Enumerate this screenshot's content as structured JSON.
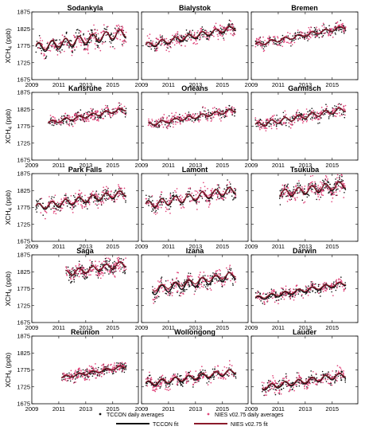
{
  "figure": {
    "legend": {
      "tccon_points": "TCCON daily averages",
      "nies_points": "NIES v02.75 daily averages",
      "tccon_fit": "TCCON fit",
      "nies_fit": "NIES v02.75 fit"
    },
    "colors": {
      "tccon": "#111111",
      "nies_point": "#e0457b",
      "nies_fit": "#8b1a2b",
      "frame": "#000000"
    }
  },
  "chart_data": [
    {
      "type": "scatter",
      "title": "Sodankyla",
      "ylabel": "XCH4 (ppb)",
      "xlim": [
        2009,
        2016.9
      ],
      "ylim": [
        1675,
        1875
      ],
      "xticks": [
        2009,
        2011,
        2013,
        2015
      ],
      "yticks": [
        1675,
        1725,
        1775,
        1825,
        1875
      ],
      "grid": false,
      "series": [
        {
          "name": "TCCON daily averages",
          "x_range": [
            2009.3,
            2016.0
          ]
        },
        {
          "name": "NIES v02.75 daily averages",
          "x_range": [
            2009.3,
            2016.0
          ]
        },
        {
          "name": "TCCON fit",
          "trend": [
            1768,
            1812
          ],
          "seasonal_amplitude": 14
        },
        {
          "name": "NIES v02.75 fit",
          "trend": [
            1772,
            1814
          ],
          "seasonal_amplitude": 12
        }
      ]
    },
    {
      "type": "scatter",
      "title": "Bialystok",
      "ylabel": "",
      "xlim": [
        2009,
        2016.9
      ],
      "ylim": [
        1675,
        1875
      ],
      "xticks": [
        2009,
        2011,
        2013,
        2015
      ],
      "yticks": [
        1675,
        1725,
        1775,
        1825,
        1875
      ],
      "grid": false,
      "series": [
        {
          "name": "TCCON daily averages",
          "x_range": [
            2009.3,
            2016.0
          ]
        },
        {
          "name": "NIES v02.75 daily averages",
          "x_range": [
            2009.3,
            2016.0
          ]
        },
        {
          "name": "TCCON fit",
          "trend": [
            1775,
            1828
          ],
          "seasonal_amplitude": 8
        },
        {
          "name": "NIES v02.75 fit",
          "trend": [
            1777,
            1830
          ],
          "seasonal_amplitude": 7
        }
      ]
    },
    {
      "type": "scatter",
      "title": "Bremen",
      "ylabel": "",
      "xlim": [
        2009,
        2016.9
      ],
      "ylim": [
        1675,
        1875
      ],
      "xticks": [
        2009,
        2011,
        2013,
        2015
      ],
      "yticks": [
        1675,
        1725,
        1775,
        1825,
        1875
      ],
      "grid": false,
      "series": [
        {
          "name": "TCCON daily averages",
          "x_range": [
            2009.3,
            2016.0
          ]
        },
        {
          "name": "NIES v02.75 daily averages",
          "x_range": [
            2009.3,
            2016.0
          ]
        },
        {
          "name": "TCCON fit",
          "trend": [
            1778,
            1830
          ],
          "seasonal_amplitude": 5
        },
        {
          "name": "NIES v02.75 fit",
          "trend": [
            1779,
            1831
          ],
          "seasonal_amplitude": 5
        }
      ]
    },
    {
      "type": "scatter",
      "title": "Karlsruhe",
      "ylabel": "XCH4 (ppb)",
      "xlim": [
        2009,
        2016.9
      ],
      "ylim": [
        1675,
        1875
      ],
      "xticks": [
        2009,
        2011,
        2013,
        2015
      ],
      "yticks": [
        1675,
        1725,
        1775,
        1825,
        1875
      ],
      "grid": false,
      "series": [
        {
          "name": "TCCON daily averages",
          "x_range": [
            2010.2,
            2016.0
          ]
        },
        {
          "name": "NIES v02.75 daily averages",
          "x_range": [
            2010.2,
            2016.0
          ]
        },
        {
          "name": "TCCON fit",
          "trend": [
            1785,
            1825
          ],
          "seasonal_amplitude": 5
        },
        {
          "name": "NIES v02.75 fit",
          "trend": [
            1786,
            1826
          ],
          "seasonal_amplitude": 5
        }
      ]
    },
    {
      "type": "scatter",
      "title": "Orleans",
      "ylabel": "",
      "xlim": [
        2009,
        2016.9
      ],
      "ylim": [
        1675,
        1875
      ],
      "xticks": [
        2009,
        2011,
        2013,
        2015
      ],
      "yticks": [
        1675,
        1725,
        1775,
        1825,
        1875
      ],
      "grid": false,
      "series": [
        {
          "name": "TCCON daily averages",
          "x_range": [
            2009.5,
            2016.0
          ]
        },
        {
          "name": "NIES v02.75 daily averages",
          "x_range": [
            2009.5,
            2016.0
          ]
        },
        {
          "name": "TCCON fit",
          "trend": [
            1780,
            1822
          ],
          "seasonal_amplitude": 5
        },
        {
          "name": "NIES v02.75 fit",
          "trend": [
            1781,
            1823
          ],
          "seasonal_amplitude": 5
        }
      ]
    },
    {
      "type": "scatter",
      "title": "Garmisch",
      "ylabel": "",
      "xlim": [
        2009,
        2016.9
      ],
      "ylim": [
        1675,
        1875
      ],
      "xticks": [
        2009,
        2011,
        2013,
        2015
      ],
      "yticks": [
        1675,
        1725,
        1775,
        1825,
        1875
      ],
      "grid": false,
      "series": [
        {
          "name": "TCCON daily averages",
          "x_range": [
            2009.3,
            2016.0
          ]
        },
        {
          "name": "NIES v02.75 daily averages",
          "x_range": [
            2009.3,
            2016.0
          ]
        },
        {
          "name": "TCCON fit",
          "trend": [
            1778,
            1825
          ],
          "seasonal_amplitude": 7
        },
        {
          "name": "NIES v02.75 fit",
          "trend": [
            1779,
            1826
          ],
          "seasonal_amplitude": 7
        }
      ]
    },
    {
      "type": "scatter",
      "title": "Park Falls",
      "ylabel": "XCH4 (ppb)",
      "xlim": [
        2009,
        2016.9
      ],
      "ylim": [
        1675,
        1875
      ],
      "xticks": [
        2009,
        2011,
        2013,
        2015
      ],
      "yticks": [
        1675,
        1725,
        1775,
        1825,
        1875
      ],
      "grid": false,
      "series": [
        {
          "name": "TCCON daily averages",
          "x_range": [
            2009.3,
            2016.0
          ]
        },
        {
          "name": "NIES v02.75 daily averages",
          "x_range": [
            2009.3,
            2016.0
          ]
        },
        {
          "name": "TCCON fit",
          "trend": [
            1775,
            1817
          ],
          "seasonal_amplitude": 10
        },
        {
          "name": "NIES v02.75 fit",
          "trend": [
            1777,
            1819
          ],
          "seasonal_amplitude": 9
        }
      ]
    },
    {
      "type": "scatter",
      "title": "Lamont",
      "ylabel": "",
      "xlim": [
        2009,
        2016.9
      ],
      "ylim": [
        1675,
        1875
      ],
      "xticks": [
        2009,
        2011,
        2013,
        2015
      ],
      "yticks": [
        1675,
        1725,
        1775,
        1825,
        1875
      ],
      "grid": false,
      "series": [
        {
          "name": "TCCON daily averages",
          "x_range": [
            2009.3,
            2016.0
          ]
        },
        {
          "name": "NIES v02.75 daily averages",
          "x_range": [
            2009.3,
            2016.0
          ]
        },
        {
          "name": "TCCON fit",
          "trend": [
            1782,
            1826
          ],
          "seasonal_amplitude": 12
        },
        {
          "name": "NIES v02.75 fit",
          "trend": [
            1782,
            1828
          ],
          "seasonal_amplitude": 10
        }
      ]
    },
    {
      "type": "scatter",
      "title": "Tsukuba",
      "ylabel": "",
      "xlim": [
        2009,
        2016.9
      ],
      "ylim": [
        1675,
        1875
      ],
      "xticks": [
        2009,
        2011,
        2013,
        2015
      ],
      "yticks": [
        1675,
        1725,
        1775,
        1825,
        1875
      ],
      "grid": false,
      "series": [
        {
          "name": "TCCON daily averages",
          "x_range": [
            2011.1,
            2016.0
          ]
        },
        {
          "name": "NIES v02.75 daily averages",
          "x_range": [
            2011.1,
            2016.0
          ]
        },
        {
          "name": "TCCON fit",
          "trend": [
            1815,
            1842
          ],
          "seasonal_amplitude": 12
        },
        {
          "name": "NIES v02.75 fit",
          "trend": [
            1816,
            1843
          ],
          "seasonal_amplitude": 10
        }
      ]
    },
    {
      "type": "scatter",
      "title": "Saga",
      "ylabel": "XCH4 (ppb)",
      "xlim": [
        2009,
        2016.9
      ],
      "ylim": [
        1675,
        1875
      ],
      "xticks": [
        2009,
        2011,
        2013,
        2015
      ],
      "yticks": [
        1675,
        1725,
        1775,
        1825,
        1875
      ],
      "grid": false,
      "series": [
        {
          "name": "TCCON daily averages",
          "x_range": [
            2011.5,
            2016.0
          ]
        },
        {
          "name": "NIES v02.75 daily averages",
          "x_range": [
            2011.5,
            2016.0
          ]
        },
        {
          "name": "TCCON fit",
          "trend": [
            1820,
            1848
          ],
          "seasonal_amplitude": 9
        },
        {
          "name": "NIES v02.75 fit",
          "trend": [
            1821,
            1849
          ],
          "seasonal_amplitude": 8
        }
      ]
    },
    {
      "type": "scatter",
      "title": "Izana",
      "ylabel": "",
      "xlim": [
        2009,
        2016.9
      ],
      "ylim": [
        1675,
        1875
      ],
      "xticks": [
        2009,
        2011,
        2013,
        2015
      ],
      "yticks": [
        1675,
        1725,
        1775,
        1825,
        1875
      ],
      "grid": false,
      "series": [
        {
          "name": "TCCON daily averages",
          "x_range": [
            2009.8,
            2016.0
          ]
        },
        {
          "name": "NIES v02.75 daily averages",
          "x_range": [
            2009.8,
            2016.0
          ]
        },
        {
          "name": "TCCON fit",
          "trend": [
            1768,
            1815
          ],
          "seasonal_amplitude": 12
        },
        {
          "name": "NIES v02.75 fit",
          "trend": [
            1775,
            1818
          ],
          "seasonal_amplitude": 8
        }
      ]
    },
    {
      "type": "scatter",
      "title": "Darwin",
      "ylabel": "",
      "xlim": [
        2009,
        2016.9
      ],
      "ylim": [
        1675,
        1875
      ],
      "xticks": [
        2009,
        2011,
        2013,
        2015
      ],
      "yticks": [
        1675,
        1725,
        1775,
        1825,
        1875
      ],
      "grid": false,
      "series": [
        {
          "name": "TCCON daily averages",
          "x_range": [
            2009.3,
            2016.0
          ]
        },
        {
          "name": "NIES v02.75 daily averages",
          "x_range": [
            2009.3,
            2016.0
          ]
        },
        {
          "name": "TCCON fit",
          "trend": [
            1745,
            1790
          ],
          "seasonal_amplitude": 6
        },
        {
          "name": "NIES v02.75 fit",
          "trend": [
            1748,
            1792
          ],
          "seasonal_amplitude": 5
        }
      ]
    },
    {
      "type": "scatter",
      "title": "Reunion",
      "ylabel": "XCH4 (ppb)",
      "xlim": [
        2009,
        2016.9
      ],
      "ylim": [
        1675,
        1875
      ],
      "xticks": [
        2009,
        2011,
        2013,
        2015
      ],
      "yticks": [
        1675,
        1725,
        1775,
        1825,
        1875
      ],
      "grid": false,
      "series": [
        {
          "name": "TCCON daily averages",
          "x_range": [
            2011.2,
            2016.0
          ]
        },
        {
          "name": "NIES v02.75 daily averages",
          "x_range": [
            2011.2,
            2016.0
          ]
        },
        {
          "name": "TCCON fit",
          "trend": [
            1752,
            1785
          ],
          "seasonal_amplitude": 4
        },
        {
          "name": "NIES v02.75 fit",
          "trend": [
            1753,
            1786
          ],
          "seasonal_amplitude": 4
        }
      ]
    },
    {
      "type": "scatter",
      "title": "Wollongong",
      "ylabel": "",
      "xlim": [
        2009,
        2016.9
      ],
      "ylim": [
        1675,
        1875
      ],
      "xticks": [
        2009,
        2011,
        2013,
        2015
      ],
      "yticks": [
        1675,
        1725,
        1775,
        1825,
        1875
      ],
      "grid": false,
      "series": [
        {
          "name": "TCCON daily averages",
          "x_range": [
            2009.3,
            2016.0
          ]
        },
        {
          "name": "NIES v02.75 daily averages",
          "x_range": [
            2009.3,
            2016.0
          ]
        },
        {
          "name": "TCCON fit",
          "trend": [
            1732,
            1770
          ],
          "seasonal_amplitude": 8
        },
        {
          "name": "NIES v02.75 fit",
          "trend": [
            1735,
            1772
          ],
          "seasonal_amplitude": 7
        }
      ]
    },
    {
      "type": "scatter",
      "title": "Lauder",
      "ylabel": "",
      "xlim": [
        2009,
        2016.9
      ],
      "ylim": [
        1675,
        1875
      ],
      "xticks": [
        2009,
        2011,
        2013,
        2015
      ],
      "yticks": [
        1675,
        1725,
        1775,
        1825,
        1875
      ],
      "grid": false,
      "series": [
        {
          "name": "TCCON daily averages",
          "x_range": [
            2009.8,
            2016.0
          ]
        },
        {
          "name": "NIES v02.75 daily averages",
          "x_range": [
            2009.8,
            2016.0
          ]
        },
        {
          "name": "TCCON fit",
          "trend": [
            1722,
            1760
          ],
          "seasonal_amplitude": 8
        },
        {
          "name": "NIES v02.75 fit",
          "trend": [
            1724,
            1762
          ],
          "seasonal_amplitude": 7
        }
      ]
    }
  ]
}
